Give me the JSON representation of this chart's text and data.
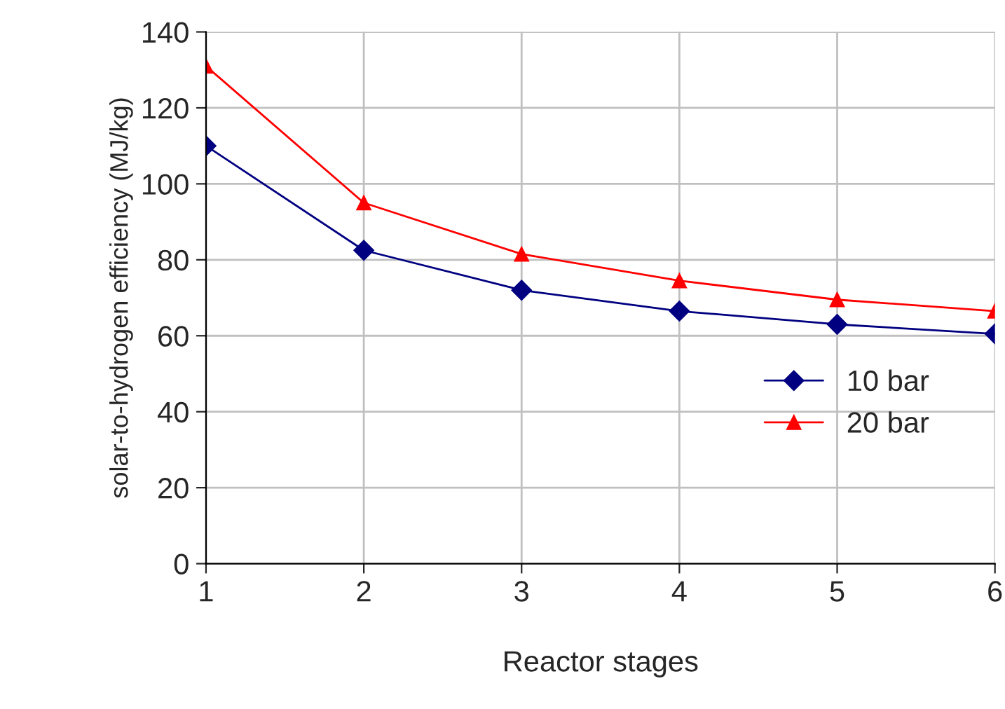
{
  "chart_data": {
    "type": "line",
    "xlabel": "Reactor stages",
    "ylabel": "solar-to-hydrogen efficiency (MJ/kg)",
    "x": [
      1,
      2,
      3,
      4,
      5,
      6
    ],
    "series": [
      {
        "name": "10 bar",
        "color": "#000080",
        "marker": "diamond",
        "values": [
          110,
          82.5,
          72,
          66.5,
          63,
          60.5
        ]
      },
      {
        "name": "20 bar",
        "color": "#ff0000",
        "marker": "triangle",
        "values": [
          131,
          95,
          81.5,
          74.5,
          69.5,
          66.5
        ]
      }
    ],
    "xlim": [
      1,
      6
    ],
    "xticks": [
      1,
      2,
      3,
      4,
      5,
      6
    ],
    "ylim": [
      0,
      140
    ],
    "yticks": [
      0,
      20,
      40,
      60,
      80,
      100,
      120,
      140
    ],
    "grid": true,
    "legend": "center right",
    "line_style": "solid"
  }
}
